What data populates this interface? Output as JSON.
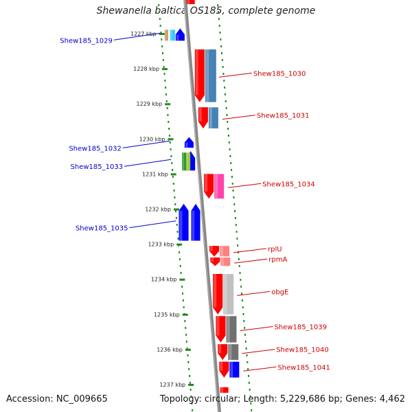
{
  "title": "Shewanella baltica OS185, complete genome",
  "accession": "Accession: NC_009665",
  "topology": "Topology: circular; Length: 5,229,686 bp; Genes: 4,462",
  "ticks": [
    {
      "label": "1227 kbp",
      "pos": 1227
    },
    {
      "label": "1228 kbp",
      "pos": 1228
    },
    {
      "label": "1229 kbp",
      "pos": 1229
    },
    {
      "label": "1230 kbp",
      "pos": 1230
    },
    {
      "label": "1231 kbp",
      "pos": 1231
    },
    {
      "label": "1232 kbp",
      "pos": 1232
    },
    {
      "label": "1233 kbp",
      "pos": 1233
    },
    {
      "label": "1234 kbp",
      "pos": 1234
    },
    {
      "label": "1235 kbp",
      "pos": 1235
    },
    {
      "label": "1236 kbp",
      "pos": 1236
    },
    {
      "label": "1237 kbp",
      "pos": 1237
    }
  ],
  "genes": [
    {
      "label": "Shew185_1029",
      "strand": "left",
      "start": 1226.85,
      "end": 1227.2
    },
    {
      "label": "Shew185_1030",
      "strand": "right",
      "start": 1227.45,
      "end": 1228.95
    },
    {
      "label": "Shew185_1031",
      "strand": "right",
      "start": 1229.1,
      "end": 1229.7
    },
    {
      "label": "Shew185_1032",
      "strand": "left",
      "start": 1229.95,
      "end": 1230.25
    },
    {
      "label": "Shew185_1033",
      "strand": "left",
      "start": 1230.35,
      "end": 1230.9
    },
    {
      "label": "Shew185_1034",
      "strand": "right",
      "start": 1231.0,
      "end": 1231.7
    },
    {
      "label": "Shew185_1035",
      "strand": "left",
      "start": 1231.85,
      "end": 1232.9
    },
    {
      "label": "rplU",
      "strand": "right",
      "start": 1233.05,
      "end": 1233.35
    },
    {
      "label": "rpmA",
      "strand": "right",
      "start": 1233.38,
      "end": 1233.62
    },
    {
      "label": "obgE",
      "strand": "right",
      "start": 1233.85,
      "end": 1235.0
    },
    {
      "label": "Shew185_1039",
      "strand": "right",
      "start": 1235.05,
      "end": 1235.8
    },
    {
      "label": "Shew185_1040",
      "strand": "right",
      "start": 1235.85,
      "end": 1236.3
    },
    {
      "label": "Shew185_1041",
      "strand": "right",
      "start": 1236.35,
      "end": 1236.8
    }
  ],
  "colors": {
    "forward_gene": "#ff0000",
    "reverse_gene": "#0000ff",
    "forward_label": "#cc0000",
    "reverse_label": "#0000cc",
    "backbone": "#888888",
    "tick": "#228822",
    "steel_blue": "#4682b4",
    "pink": "#ff44aa",
    "light_gray": "#c0c0c0",
    "dark_gray": "#707070"
  }
}
